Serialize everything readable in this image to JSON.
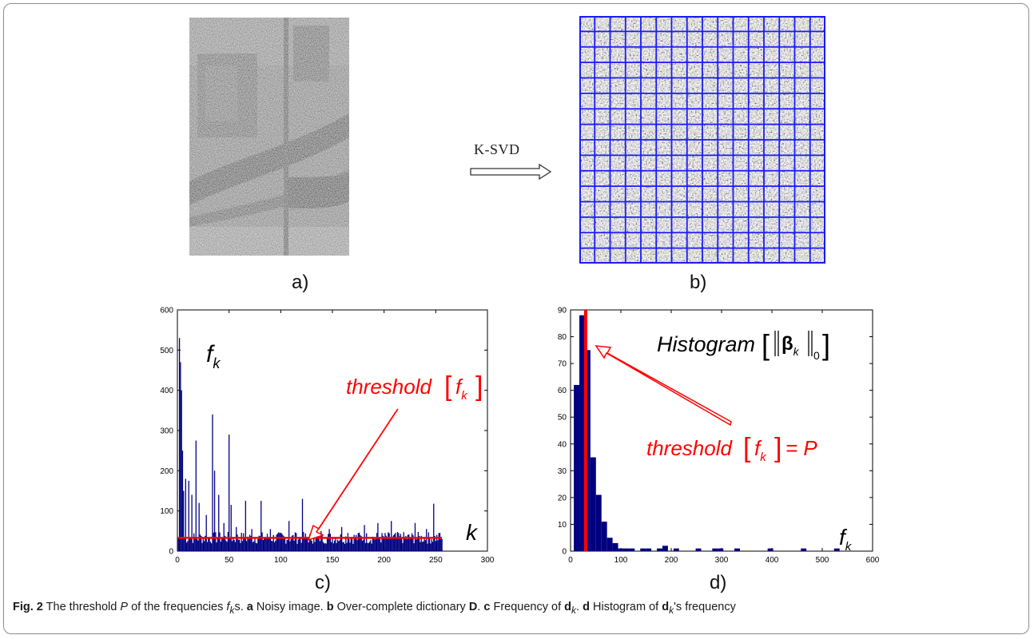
{
  "figure": {
    "transform_label": "K-SVD",
    "panel_letters": [
      "a)",
      "b)",
      "c)",
      "d)"
    ],
    "caption": {
      "fig_label": "Fig. 2",
      "text_1": "The threshold",
      "p_symbol": "P",
      "text_2": "of the frequencies",
      "fk_base": "f",
      "fk_sub": "k",
      "text_3": "s.",
      "a_key": "a",
      "a_text": "Noisy image.",
      "b_key": "b",
      "b_text": "Over-complete dictionary",
      "b_bold": "D",
      "c_key": "c",
      "c_text": "Frequency of",
      "c_bold": "d",
      "c_sub": "k",
      "d_key": "d",
      "d_text_1": "Histogram of",
      "d_bold": "d",
      "d_sub": "k",
      "d_text_2": "'s frequency"
    }
  },
  "chart_data": [
    {
      "type": "bar",
      "panel": "c)",
      "annotation_fk": "f",
      "annotation_fk_sub": "k",
      "annotation_k": "k",
      "annotation_threshold": "threshold",
      "annotation_threshold_arg": "f",
      "annotation_threshold_arg_sub": "k",
      "xlim": [
        0,
        300
      ],
      "ylim": [
        0,
        600
      ],
      "x_ticks": [
        0,
        50,
        100,
        150,
        200,
        250,
        300
      ],
      "y_ticks": [
        0,
        100,
        200,
        300,
        400,
        500,
        600
      ],
      "bar_color": "#000080",
      "threshold_color": "#ff0000",
      "threshold_value": 33,
      "n_bars": 256,
      "peaks": [
        {
          "x": 2,
          "y": 530
        },
        {
          "x": 3,
          "y": 470
        },
        {
          "x": 4,
          "y": 400
        },
        {
          "x": 5,
          "y": 250
        },
        {
          "x": 6,
          "y": 150
        },
        {
          "x": 8,
          "y": 180
        },
        {
          "x": 11,
          "y": 175
        },
        {
          "x": 14,
          "y": 140
        },
        {
          "x": 18,
          "y": 275
        },
        {
          "x": 21,
          "y": 120
        },
        {
          "x": 28,
          "y": 90
        },
        {
          "x": 34,
          "y": 340
        },
        {
          "x": 36,
          "y": 200
        },
        {
          "x": 40,
          "y": 140
        },
        {
          "x": 45,
          "y": 70
        },
        {
          "x": 50,
          "y": 290
        },
        {
          "x": 52,
          "y": 115
        },
        {
          "x": 57,
          "y": 60
        },
        {
          "x": 66,
          "y": 125
        },
        {
          "x": 72,
          "y": 55
        },
        {
          "x": 81,
          "y": 125
        },
        {
          "x": 90,
          "y": 55
        },
        {
          "x": 99,
          "y": 45
        },
        {
          "x": 108,
          "y": 75
        },
        {
          "x": 115,
          "y": 45
        },
        {
          "x": 121,
          "y": 130
        },
        {
          "x": 132,
          "y": 40
        },
        {
          "x": 139,
          "y": 50
        },
        {
          "x": 147,
          "y": 55
        },
        {
          "x": 159,
          "y": 60
        },
        {
          "x": 165,
          "y": 45
        },
        {
          "x": 175,
          "y": 45
        },
        {
          "x": 181,
          "y": 65
        },
        {
          "x": 194,
          "y": 70
        },
        {
          "x": 207,
          "y": 75
        },
        {
          "x": 214,
          "y": 45
        },
        {
          "x": 230,
          "y": 70
        },
        {
          "x": 241,
          "y": 55
        },
        {
          "x": 248,
          "y": 118
        },
        {
          "x": 253,
          "y": 45
        }
      ]
    },
    {
      "type": "bar",
      "panel": "d)",
      "annotation_title": "Histogram",
      "annotation_beta": "β",
      "annotation_beta_sub": "k",
      "annotation_norm_sub": "0",
      "annotation_threshold": "threshold",
      "annotation_threshold_arg": "f",
      "annotation_threshold_arg_sub": "k",
      "annotation_equals": "= P",
      "annotation_fk": "f",
      "annotation_fk_sub": "k",
      "xlim": [
        0,
        600
      ],
      "ylim": [
        0,
        90
      ],
      "x_ticks": [
        0,
        100,
        200,
        300,
        400,
        500,
        600
      ],
      "y_ticks": [
        0,
        10,
        20,
        30,
        40,
        50,
        60,
        70,
        80,
        90
      ],
      "bar_color": "#000080",
      "threshold_color": "#ff0000",
      "threshold_value": 30,
      "bin_width": 11,
      "bins": [
        {
          "x": 12,
          "y": 62
        },
        {
          "x": 23,
          "y": 88
        },
        {
          "x": 34,
          "y": 75
        },
        {
          "x": 45,
          "y": 35
        },
        {
          "x": 56,
          "y": 21
        },
        {
          "x": 67,
          "y": 11
        },
        {
          "x": 78,
          "y": 5
        },
        {
          "x": 89,
          "y": 3
        },
        {
          "x": 100,
          "y": 1
        },
        {
          "x": 111,
          "y": 1
        },
        {
          "x": 122,
          "y": 1
        },
        {
          "x": 144,
          "y": 1
        },
        {
          "x": 155,
          "y": 1
        },
        {
          "x": 177,
          "y": 1
        },
        {
          "x": 188,
          "y": 2
        },
        {
          "x": 210,
          "y": 1
        },
        {
          "x": 254,
          "y": 1
        },
        {
          "x": 287,
          "y": 1
        },
        {
          "x": 298,
          "y": 1
        },
        {
          "x": 331,
          "y": 1
        },
        {
          "x": 397,
          "y": 1
        },
        {
          "x": 463,
          "y": 1
        },
        {
          "x": 529,
          "y": 1
        }
      ]
    }
  ]
}
